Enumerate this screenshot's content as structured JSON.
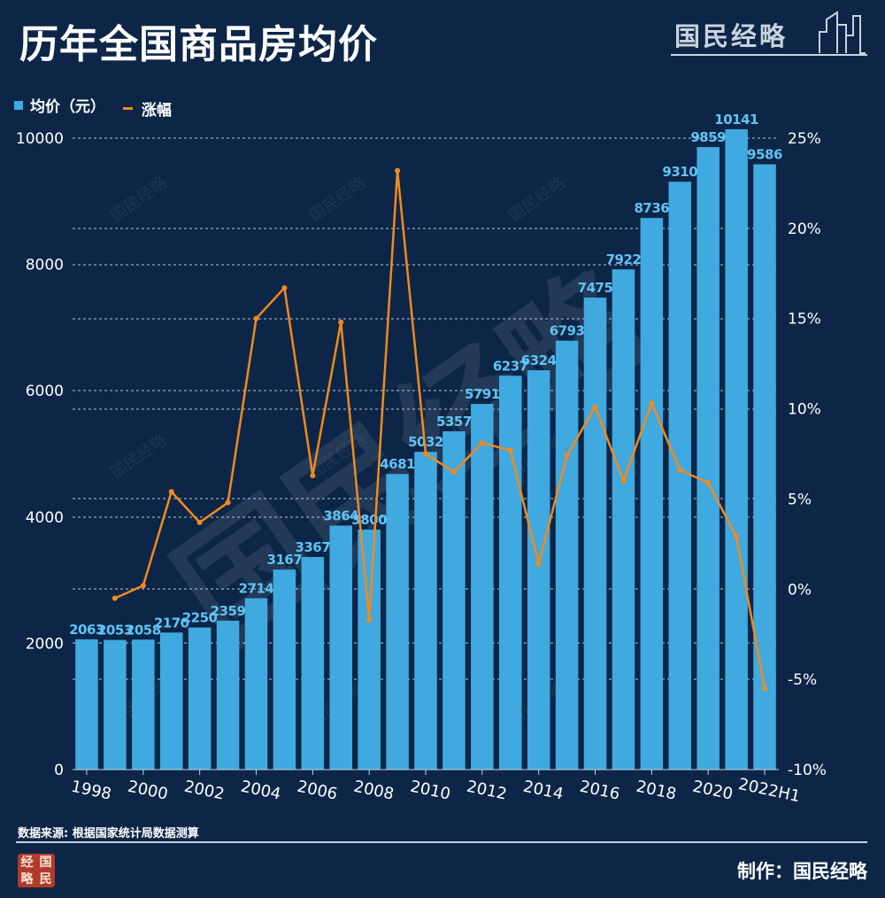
{
  "title": "历年全国商品房均价",
  "brand": {
    "text": "国民经略"
  },
  "legend": {
    "bar_label": "均价（元）",
    "line_label": "涨幅"
  },
  "colors": {
    "background": "#0d2647",
    "bar": "#3fa9e0",
    "bar_label": "#5ec4f5",
    "line": "#f28a1e",
    "grid": "#b8c6d6"
  },
  "watermark": {
    "text": "国民经略"
  },
  "source": "数据来源: 根据国家统计局数据测算",
  "credit": "制作：国民经略",
  "seal": {
    "chars": [
      "经",
      "国",
      "略",
      "民"
    ]
  },
  "chart_data": {
    "type": "bar+line",
    "title": "历年全国商品房均价",
    "categories": [
      "1998",
      "1999",
      "2000",
      "2001",
      "2002",
      "2003",
      "2004",
      "2005",
      "2006",
      "2007",
      "2008",
      "2009",
      "2010",
      "2011",
      "2012",
      "2013",
      "2014",
      "2015",
      "2016",
      "2017",
      "2018",
      "2019",
      "2020",
      "2021",
      "2022H1"
    ],
    "x_tick_labels": [
      "1998",
      "2000",
      "2002",
      "2004",
      "2006",
      "2008",
      "2010",
      "2012",
      "2014",
      "2016",
      "2018",
      "2020",
      "2022H1"
    ],
    "series": [
      {
        "name": "均价（元）",
        "type": "bar",
        "axis": "left",
        "values": [
          2063,
          2053,
          2058,
          2170,
          2250,
          2359,
          2714,
          3167,
          3367,
          3864,
          3800,
          4681,
          5032,
          5357,
          5791,
          6237,
          6324,
          6793,
          7475,
          7922,
          8736,
          9310,
          9859,
          10141,
          9586
        ]
      },
      {
        "name": "涨幅",
        "type": "line",
        "axis": "right",
        "unit": "%",
        "values": [
          null,
          -0.5,
          0.2,
          5.4,
          3.7,
          4.8,
          15.0,
          16.7,
          6.3,
          14.8,
          -1.7,
          23.2,
          7.5,
          6.5,
          8.1,
          7.7,
          1.4,
          7.4,
          10.1,
          6.0,
          10.3,
          6.6,
          5.9,
          2.9,
          -5.5
        ]
      }
    ],
    "y_left": {
      "range": [
        0,
        10000
      ],
      "ticks": [
        "0",
        "2000",
        "4000",
        "6000",
        "8000",
        "10000"
      ]
    },
    "y_right": {
      "range": [
        -10,
        25
      ],
      "ticks": [
        "-10%",
        "-5%",
        "0%",
        "5%",
        "10%",
        "15%",
        "20%",
        "25%"
      ]
    },
    "grid": true,
    "legend_position": "top-left"
  }
}
